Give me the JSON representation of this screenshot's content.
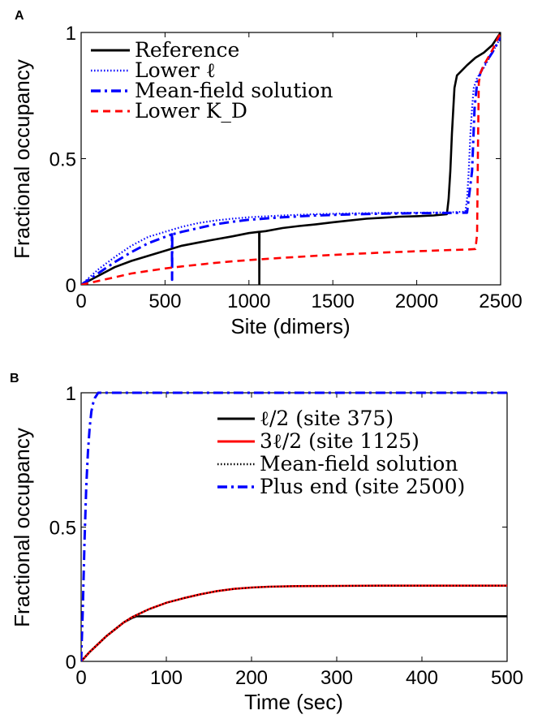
{
  "chart_data": [
    {
      "panel": "A",
      "type": "line",
      "xlabel": "Site (dimers)",
      "ylabel": "Fractional occupancy",
      "xlim": [
        0,
        2500
      ],
      "ylim": [
        0,
        1
      ],
      "xticks": [
        "0",
        "500",
        "1000",
        "1500",
        "2000",
        "2500"
      ],
      "yticks": [
        "0",
        "0.5",
        "1"
      ],
      "legend_position": "top-left",
      "series": [
        {
          "name": "Reference",
          "color": "#000000",
          "style": "solid",
          "x": [
            0,
            100,
            200,
            300,
            400,
            500,
            600,
            700,
            800,
            900,
            1000,
            1060,
            1061,
            1062,
            1063,
            1100,
            1200,
            1300,
            1400,
            1500,
            1600,
            1700,
            1800,
            1900,
            2000,
            2100,
            2180,
            2190,
            2200,
            2210,
            2225,
            2240,
            2270,
            2300,
            2350,
            2400,
            2450,
            2500
          ],
          "y": [
            0,
            0.035,
            0.07,
            0.095,
            0.115,
            0.135,
            0.155,
            0.168,
            0.18,
            0.192,
            0.205,
            0.21,
            0.21,
            0,
            0.21,
            0.213,
            0.225,
            0.233,
            0.24,
            0.248,
            0.255,
            0.262,
            0.266,
            0.27,
            0.272,
            0.275,
            0.28,
            0.34,
            0.45,
            0.6,
            0.78,
            0.83,
            0.85,
            0.87,
            0.9,
            0.92,
            0.95,
            1.0
          ]
        },
        {
          "name": "Lower ℓ",
          "color": "#0000ff",
          "style": "dotted",
          "x": [
            0,
            100,
            200,
            300,
            400,
            500,
            600,
            700,
            800,
            900,
            1000,
            1200,
            1400,
            1600,
            1800,
            2000,
            2200,
            2290,
            2300,
            2310,
            2320,
            2330,
            2340,
            2360,
            2400,
            2450,
            2500
          ],
          "y": [
            0,
            0.06,
            0.11,
            0.155,
            0.19,
            0.21,
            0.23,
            0.245,
            0.255,
            0.262,
            0.268,
            0.275,
            0.28,
            0.283,
            0.285,
            0.286,
            0.287,
            0.29,
            0.34,
            0.45,
            0.6,
            0.7,
            0.78,
            0.82,
            0.86,
            0.92,
            0.98
          ]
        },
        {
          "name": "Mean-field solution",
          "color": "#0000ff",
          "style": "dashdot",
          "x": [
            0,
            100,
            200,
            300,
            400,
            500,
            540,
            541,
            542,
            543,
            600,
            700,
            800,
            900,
            1000,
            1200,
            1400,
            1600,
            1800,
            2000,
            2200,
            2300,
            2330,
            2345,
            2360,
            2380,
            2400,
            2450,
            2500
          ],
          "y": [
            0,
            0.045,
            0.09,
            0.13,
            0.165,
            0.19,
            0.2,
            0.2,
            0.02,
            0.2,
            0.21,
            0.225,
            0.24,
            0.25,
            0.258,
            0.268,
            0.275,
            0.279,
            0.282,
            0.284,
            0.285,
            0.286,
            0.45,
            0.7,
            0.8,
            0.84,
            0.87,
            0.92,
            0.98
          ]
        },
        {
          "name": "Lower K_D",
          "color": "#ff0000",
          "style": "dashed",
          "x": [
            0,
            100,
            200,
            300,
            400,
            500,
            600,
            700,
            800,
            900,
            1000,
            1200,
            1400,
            1600,
            1800,
            2000,
            2200,
            2300,
            2350,
            2360,
            2365,
            2370,
            2375,
            2380,
            2400,
            2450,
            2500
          ],
          "y": [
            0,
            0.015,
            0.03,
            0.045,
            0.055,
            0.065,
            0.073,
            0.08,
            0.087,
            0.093,
            0.098,
            0.107,
            0.115,
            0.122,
            0.128,
            0.133,
            0.138,
            0.14,
            0.142,
            0.2,
            0.55,
            0.8,
            0.82,
            0.84,
            0.87,
            0.93,
            1.0
          ]
        }
      ]
    },
    {
      "panel": "B",
      "type": "line",
      "xlabel": "Time (sec)",
      "ylabel": "Fractional occupancy",
      "xlim": [
        0,
        500
      ],
      "ylim": [
        0,
        1
      ],
      "xticks": [
        "0",
        "100",
        "200",
        "300",
        "400",
        "500"
      ],
      "yticks": [
        "0",
        "0.5",
        "1"
      ],
      "legend_position": "top-right",
      "series": [
        {
          "name": "ℓ/2 (site 375)",
          "color": "#000000",
          "style": "solid",
          "x": [
            0,
            10,
            20,
            30,
            40,
            50,
            60,
            65,
            70,
            80,
            100,
            150,
            200,
            250,
            300,
            350,
            400,
            450,
            500
          ],
          "y": [
            0,
            0.035,
            0.065,
            0.095,
            0.12,
            0.145,
            0.162,
            0.168,
            0.168,
            0.168,
            0.168,
            0.168,
            0.168,
            0.168,
            0.168,
            0.168,
            0.168,
            0.168,
            0.168
          ]
        },
        {
          "name": "3ℓ/2 (site 1125)",
          "color": "#ff0000",
          "style": "solid",
          "x": [
            0,
            10,
            20,
            30,
            40,
            50,
            60,
            70,
            80,
            100,
            120,
            140,
            160,
            180,
            200,
            220,
            250,
            300,
            350,
            400,
            450,
            500
          ],
          "y": [
            0,
            0.035,
            0.065,
            0.095,
            0.12,
            0.145,
            0.165,
            0.18,
            0.195,
            0.218,
            0.235,
            0.25,
            0.262,
            0.27,
            0.275,
            0.278,
            0.28,
            0.281,
            0.282,
            0.282,
            0.282,
            0.282
          ]
        },
        {
          "name": "Mean-field solution",
          "color": "#000000",
          "style": "dotted",
          "x": [
            0,
            10,
            20,
            30,
            40,
            50,
            60,
            70,
            80,
            100,
            120,
            140,
            160,
            180,
            200,
            220,
            250,
            300,
            350,
            400,
            450,
            500
          ],
          "y": [
            0,
            0.035,
            0.065,
            0.095,
            0.12,
            0.145,
            0.165,
            0.18,
            0.195,
            0.218,
            0.235,
            0.25,
            0.262,
            0.27,
            0.275,
            0.278,
            0.28,
            0.281,
            0.282,
            0.282,
            0.282,
            0.282
          ]
        },
        {
          "name": "Plus end (site 2500)",
          "color": "#0000ff",
          "style": "dashdot",
          "x": [
            0,
            2,
            4,
            6,
            8,
            10,
            12,
            14,
            16,
            18,
            20,
            25,
            30,
            100,
            200,
            300,
            400,
            500
          ],
          "y": [
            0,
            0.2,
            0.45,
            0.65,
            0.78,
            0.87,
            0.93,
            0.96,
            0.98,
            0.99,
            1.0,
            1.0,
            1.0,
            1.0,
            1.0,
            1.0,
            1.0,
            1.0
          ]
        }
      ]
    }
  ]
}
